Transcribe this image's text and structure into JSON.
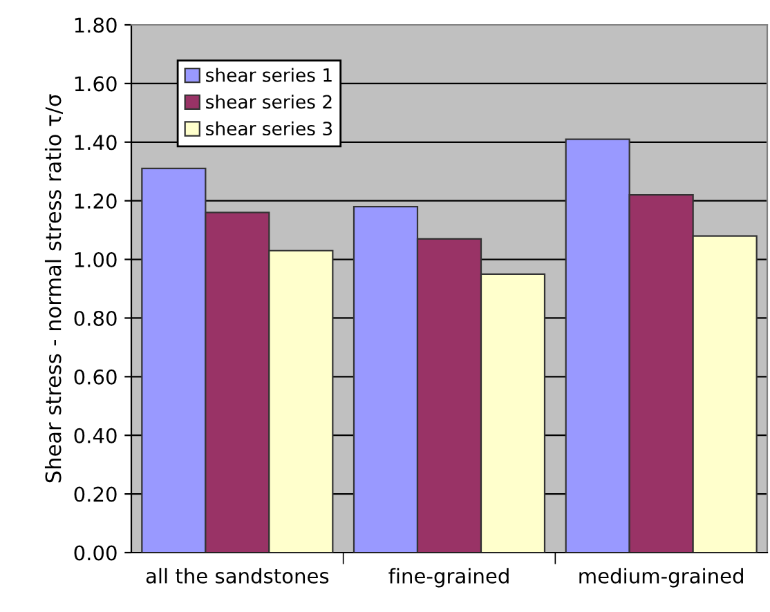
{
  "chart_data": {
    "type": "bar",
    "ylabel": "Shear stress - normal stress ratio τ/σ",
    "categories": [
      "all the sandstones",
      "fine-grained",
      "medium-grained"
    ],
    "series": [
      {
        "name": "shear series 1",
        "color": "#9999ff",
        "values": [
          1.31,
          1.18,
          1.41
        ]
      },
      {
        "name": "shear series 2",
        "color": "#993366",
        "values": [
          1.16,
          1.07,
          1.22
        ]
      },
      {
        "name": "shear series 3",
        "color": "#ffffcc",
        "values": [
          1.03,
          0.95,
          1.08
        ]
      }
    ],
    "ylim": [
      0,
      1.8
    ],
    "yticks": [
      {
        "value": 0,
        "label": "0.00"
      },
      {
        "value": 0.2,
        "label": "0.20"
      },
      {
        "value": 0.4,
        "label": "0.40"
      },
      {
        "value": 0.6,
        "label": "0.60"
      },
      {
        "value": 0.8,
        "label": "0.80"
      },
      {
        "value": 1.0,
        "label": "1.00"
      },
      {
        "value": 1.2,
        "label": "1.20"
      },
      {
        "value": 1.4,
        "label": "1.40"
      },
      {
        "value": 1.6,
        "label": "1.60"
      },
      {
        "value": 1.8,
        "label": "1.80"
      }
    ],
    "grid": "y",
    "legend": "top left"
  }
}
